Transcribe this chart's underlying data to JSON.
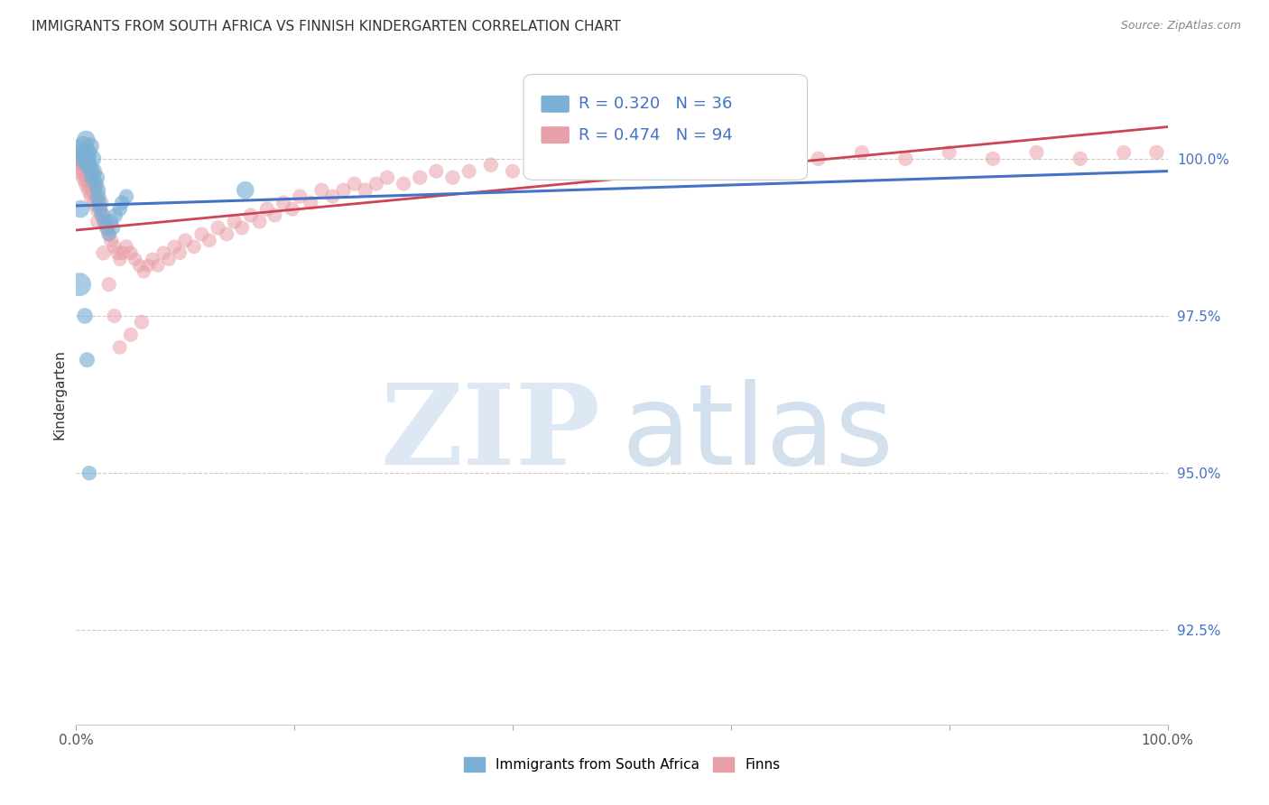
{
  "title": "IMMIGRANTS FROM SOUTH AFRICA VS FINNISH KINDERGARTEN CORRELATION CHART",
  "source": "Source: ZipAtlas.com",
  "ylabel": "Kindergarten",
  "yticks": [
    92.5,
    95.0,
    97.5,
    100.0
  ],
  "ytick_labels": [
    "92.5%",
    "95.0%",
    "97.5%",
    "100.0%"
  ],
  "xlim": [
    0.0,
    1.0
  ],
  "ylim": [
    91.0,
    101.5
  ],
  "blue_color": "#7bafd4",
  "pink_color": "#e8a0a8",
  "blue_line_color": "#4472c4",
  "pink_line_color": "#cc4455",
  "R_blue": 0.32,
  "N_blue": 36,
  "R_pink": 0.474,
  "N_pink": 94,
  "legend_label_blue": "Immigrants from South Africa",
  "legend_label_pink": "Finns",
  "background_color": "#ffffff",
  "blue_scatter_x": [
    0.003,
    0.005,
    0.007,
    0.008,
    0.009,
    0.01,
    0.01,
    0.011,
    0.012,
    0.013,
    0.014,
    0.015,
    0.015,
    0.016,
    0.018,
    0.019,
    0.02,
    0.02,
    0.021,
    0.022,
    0.024,
    0.026,
    0.028,
    0.03,
    0.032,
    0.034,
    0.036,
    0.04,
    0.042,
    0.046,
    0.003,
    0.155,
    0.004,
    0.008,
    0.01,
    0.012
  ],
  "blue_scatter_y": [
    100.1,
    100.0,
    100.2,
    100.1,
    100.3,
    100.0,
    99.9,
    100.1,
    99.9,
    100.2,
    99.8,
    100.0,
    99.7,
    99.8,
    99.6,
    99.7,
    99.5,
    99.4,
    99.3,
    99.2,
    99.1,
    99.0,
    98.9,
    98.8,
    99.0,
    98.9,
    99.1,
    99.2,
    99.3,
    99.4,
    98.0,
    99.5,
    99.2,
    97.5,
    96.8,
    95.0
  ],
  "blue_scatter_size": [
    200,
    180,
    250,
    200,
    220,
    200,
    180,
    200,
    180,
    200,
    180,
    200,
    180,
    180,
    160,
    160,
    160,
    160,
    150,
    150,
    140,
    140,
    130,
    130,
    140,
    130,
    140,
    140,
    140,
    140,
    350,
    200,
    200,
    160,
    150,
    140
  ],
  "pink_scatter_x": [
    0.001,
    0.003,
    0.005,
    0.006,
    0.007,
    0.008,
    0.009,
    0.01,
    0.011,
    0.012,
    0.013,
    0.014,
    0.015,
    0.016,
    0.018,
    0.02,
    0.022,
    0.024,
    0.026,
    0.028,
    0.03,
    0.032,
    0.035,
    0.038,
    0.04,
    0.043,
    0.046,
    0.05,
    0.054,
    0.058,
    0.062,
    0.066,
    0.07,
    0.075,
    0.08,
    0.085,
    0.09,
    0.095,
    0.1,
    0.108,
    0.115,
    0.122,
    0.13,
    0.138,
    0.145,
    0.152,
    0.16,
    0.168,
    0.175,
    0.182,
    0.19,
    0.198,
    0.205,
    0.215,
    0.225,
    0.235,
    0.245,
    0.255,
    0.265,
    0.275,
    0.285,
    0.3,
    0.315,
    0.33,
    0.345,
    0.36,
    0.38,
    0.4,
    0.42,
    0.44,
    0.46,
    0.48,
    0.5,
    0.52,
    0.54,
    0.56,
    0.6,
    0.64,
    0.68,
    0.72,
    0.76,
    0.8,
    0.84,
    0.88,
    0.92,
    0.96,
    0.02,
    0.025,
    0.03,
    0.035,
    0.04,
    0.05,
    0.06,
    0.99
  ],
  "pink_scatter_y": [
    100.1,
    100.0,
    99.9,
    100.0,
    99.8,
    99.9,
    99.7,
    99.8,
    99.6,
    99.7,
    99.5,
    99.6,
    99.4,
    99.5,
    99.3,
    99.2,
    99.3,
    99.1,
    99.0,
    98.9,
    98.8,
    98.7,
    98.6,
    98.5,
    98.4,
    98.5,
    98.6,
    98.5,
    98.4,
    98.3,
    98.2,
    98.3,
    98.4,
    98.3,
    98.5,
    98.4,
    98.6,
    98.5,
    98.7,
    98.6,
    98.8,
    98.7,
    98.9,
    98.8,
    99.0,
    98.9,
    99.1,
    99.0,
    99.2,
    99.1,
    99.3,
    99.2,
    99.4,
    99.3,
    99.5,
    99.4,
    99.5,
    99.6,
    99.5,
    99.6,
    99.7,
    99.6,
    99.7,
    99.8,
    99.7,
    99.8,
    99.9,
    99.8,
    99.9,
    100.0,
    99.9,
    100.0,
    100.0,
    100.1,
    100.0,
    100.1,
    99.8,
    99.9,
    100.0,
    100.1,
    100.0,
    100.1,
    100.0,
    100.1,
    100.0,
    100.1,
    99.0,
    98.5,
    98.0,
    97.5,
    97.0,
    97.2,
    97.4,
    100.1
  ],
  "pink_scatter_size": [
    400,
    350,
    300,
    320,
    280,
    300,
    260,
    280,
    240,
    260,
    220,
    240,
    200,
    220,
    200,
    180,
    190,
    170,
    160,
    150,
    145,
    140,
    135,
    130,
    125,
    130,
    135,
    130,
    125,
    120,
    115,
    120,
    125,
    120,
    130,
    125,
    130,
    125,
    135,
    130,
    135,
    130,
    140,
    135,
    140,
    135,
    140,
    135,
    140,
    135,
    140,
    135,
    140,
    135,
    140,
    135,
    140,
    135,
    140,
    135,
    140,
    135,
    140,
    135,
    140,
    135,
    140,
    135,
    140,
    135,
    140,
    135,
    140,
    135,
    140,
    135,
    140,
    135,
    140,
    135,
    140,
    135,
    140,
    135,
    140,
    135,
    150,
    145,
    140,
    135,
    130,
    135,
    140,
    140
  ]
}
